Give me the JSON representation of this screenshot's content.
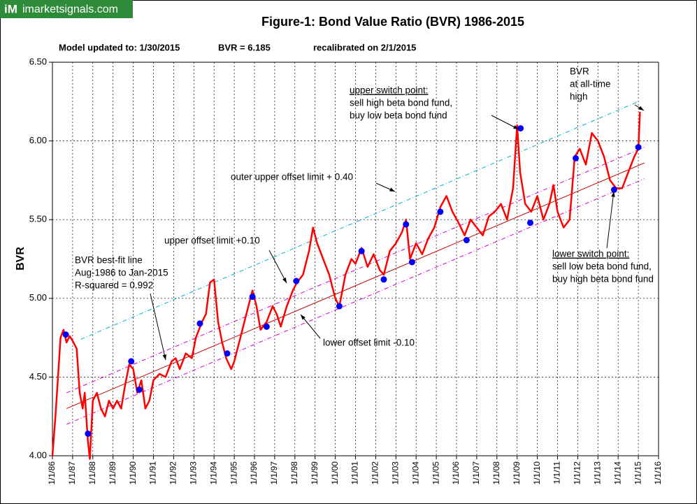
{
  "chart_data": {
    "type": "line",
    "brand": {
      "mark": "iM",
      "site": "imarketsignals.com"
    },
    "title": "Figure-1:  Bond Value Ratio (BVR)  1986-2015",
    "subtitle": [
      "Model updated to: 1/30/2015",
      "BVR = 6.185",
      "recalibrated on 2/1/2015"
    ],
    "ylabel": "BVR",
    "xlim": [
      1986,
      2016
    ],
    "xticks": [
      {
        "value": 1986,
        "label": "1/1/86"
      },
      {
        "value": 1987,
        "label": "1/1/87"
      },
      {
        "value": 1988,
        "label": "1/1/88"
      },
      {
        "value": 1989,
        "label": "1/1/89"
      },
      {
        "value": 1990,
        "label": "1/1/90"
      },
      {
        "value": 1991,
        "label": "1/1/91"
      },
      {
        "value": 1992,
        "label": "1/1/92"
      },
      {
        "value": 1993,
        "label": "1/1/93"
      },
      {
        "value": 1994,
        "label": "1/1/94"
      },
      {
        "value": 1995,
        "label": "1/1/95"
      },
      {
        "value": 1996,
        "label": "1/1/96"
      },
      {
        "value": 1997,
        "label": "1/1/97"
      },
      {
        "value": 1998,
        "label": "1/1/98"
      },
      {
        "value": 1999,
        "label": "1/1/99"
      },
      {
        "value": 2000,
        "label": "1/1/00"
      },
      {
        "value": 2001,
        "label": "1/1/01"
      },
      {
        "value": 2002,
        "label": "1/1/02"
      },
      {
        "value": 2003,
        "label": "1/1/03"
      },
      {
        "value": 2004,
        "label": "1/1/04"
      },
      {
        "value": 2005,
        "label": "1/1/05"
      },
      {
        "value": 2006,
        "label": "1/1/06"
      },
      {
        "value": 2007,
        "label": "1/1/07"
      },
      {
        "value": 2008,
        "label": "1/1/08"
      },
      {
        "value": 2009,
        "label": "1/1/09"
      },
      {
        "value": 2010,
        "label": "1/1/10"
      },
      {
        "value": 2011,
        "label": "1/1/11"
      },
      {
        "value": 2012,
        "label": "1/1/12"
      },
      {
        "value": 2013,
        "label": "1/1/13"
      },
      {
        "value": 2014,
        "label": "1/1/14"
      },
      {
        "value": 2015,
        "label": "1/1/15"
      },
      {
        "value": 2016,
        "label": "1/1/16"
      }
    ],
    "ylim": [
      4,
      6.5
    ],
    "yticks": [
      {
        "value": 4,
        "label": "4.00"
      },
      {
        "value": 4.5,
        "label": "4.50"
      },
      {
        "value": 5,
        "label": "5.00"
      },
      {
        "value": 5.5,
        "label": "5.50"
      },
      {
        "value": 6,
        "label": "6.00"
      },
      {
        "value": 6.5,
        "label": "6.50"
      }
    ],
    "grid": true,
    "series": [
      {
        "color": "#00b0d0",
        "dashed": true,
        "width": 1,
        "x": [
          1987.4,
          2015.0
        ],
        "values": [
          4.74,
          6.25
        ]
      },
      {
        "color": "#d000d0",
        "dashed": true,
        "width": 1,
        "x": [
          1986.7,
          2015.3
        ],
        "values": [
          4.4,
          5.96
        ]
      },
      {
        "color": "#d000d0",
        "dashed": true,
        "width": 1,
        "x": [
          1986.7,
          2015.3
        ],
        "values": [
          4.2,
          5.76
        ]
      },
      {
        "color": "#c00000",
        "width": 1,
        "x": [
          1986.7,
          2015.3
        ],
        "values": [
          4.3,
          5.86
        ]
      },
      {
        "color": "#ff0000",
        "width": 2.5,
        "x": [
          1986.0,
          1986.15,
          1986.3,
          1986.4,
          1986.55,
          1986.7,
          1986.85,
          1987.0,
          1987.2,
          1987.35,
          1987.5,
          1987.6,
          1987.75,
          1987.85,
          1988.0,
          1988.2,
          1988.4,
          1988.6,
          1988.8,
          1989.0,
          1989.2,
          1989.4,
          1989.6,
          1989.8,
          1990.0,
          1990.2,
          1990.4,
          1990.6,
          1990.8,
          1991.0,
          1991.3,
          1991.6,
          1991.9,
          1992.1,
          1992.3,
          1992.6,
          1992.9,
          1993.1,
          1993.4,
          1993.6,
          1993.8,
          1994.0,
          1994.2,
          1994.4,
          1994.6,
          1994.85,
          1995.0,
          1995.3,
          1995.6,
          1995.9,
          1996.1,
          1996.3,
          1996.6,
          1996.9,
          1997.1,
          1997.3,
          1997.6,
          1997.9,
          1998.1,
          1998.4,
          1998.7,
          1998.9,
          1999.1,
          1999.4,
          1999.7,
          2000.0,
          2000.2,
          2000.5,
          2000.8,
          2001.0,
          2001.3,
          2001.6,
          2001.9,
          2002.2,
          2002.4,
          2002.7,
          2003.0,
          2003.3,
          2003.5,
          2003.7,
          2004.0,
          2004.3,
          2004.6,
          2004.9,
          2005.2,
          2005.5,
          2005.8,
          2006.1,
          2006.4,
          2006.7,
          2007.0,
          2007.3,
          2007.6,
          2007.9,
          2008.2,
          2008.5,
          2008.8,
          2009.0,
          2009.15,
          2009.4,
          2009.7,
          2010.0,
          2010.3,
          2010.6,
          2010.8,
          2011.0,
          2011.3,
          2011.6,
          2011.85,
          2012.1,
          2012.4,
          2012.7,
          2013.0,
          2013.3,
          2013.6,
          2013.9,
          2014.2,
          2014.5,
          2014.8,
          2015.0,
          2015.08
        ],
        "values": [
          4.0,
          4.25,
          4.55,
          4.75,
          4.8,
          4.72,
          4.76,
          4.73,
          4.68,
          4.4,
          4.3,
          4.4,
          4.1,
          3.98,
          4.35,
          4.4,
          4.3,
          4.25,
          4.35,
          4.3,
          4.35,
          4.3,
          4.45,
          4.58,
          4.55,
          4.4,
          4.48,
          4.3,
          4.35,
          4.48,
          4.52,
          4.5,
          4.6,
          4.62,
          4.55,
          4.65,
          4.62,
          4.75,
          4.85,
          4.9,
          5.1,
          5.12,
          4.85,
          4.72,
          4.62,
          4.55,
          4.6,
          4.75,
          4.9,
          5.05,
          4.95,
          4.8,
          4.85,
          4.95,
          4.9,
          4.82,
          4.95,
          5.05,
          5.1,
          5.15,
          5.3,
          5.45,
          5.35,
          5.25,
          5.15,
          5.0,
          4.95,
          5.15,
          5.25,
          5.22,
          5.32,
          5.2,
          5.28,
          5.18,
          5.15,
          5.3,
          5.35,
          5.42,
          5.5,
          5.25,
          5.35,
          5.28,
          5.38,
          5.45,
          5.58,
          5.65,
          5.55,
          5.48,
          5.4,
          5.5,
          5.45,
          5.4,
          5.52,
          5.55,
          5.6,
          5.5,
          5.7,
          6.1,
          5.8,
          5.6,
          5.55,
          5.65,
          5.5,
          5.6,
          5.72,
          5.55,
          5.45,
          5.5,
          5.9,
          5.95,
          5.85,
          6.05,
          6.0,
          5.9,
          5.75,
          5.7,
          5.7,
          5.8,
          5.9,
          5.95,
          6.185
        ]
      },
      {
        "color": "#0000ff",
        "marker": "circle",
        "x": [
          1986.66,
          1987.76,
          1989.9,
          1990.3,
          1993.3,
          1994.65,
          1995.9,
          1996.6,
          1998.07,
          2000.2,
          2001.3,
          2002.4,
          2003.5,
          2003.8,
          2005.2,
          2006.5,
          2009.17,
          2009.65,
          2011.9,
          2013.8,
          2015.0
        ],
        "values": [
          4.77,
          4.14,
          4.6,
          4.42,
          4.84,
          4.65,
          5.01,
          4.82,
          5.11,
          4.95,
          5.3,
          5.12,
          5.47,
          5.23,
          5.55,
          5.37,
          6.08,
          5.48,
          5.89,
          5.69,
          5.96
        ]
      }
    ],
    "annotations": [
      {
        "lines": [
          "upper switch point:",
          "sell high beta bond fund,",
          "buy low beta bond fund"
        ],
        "underline_first": true
      },
      {
        "lines": [
          "BVR",
          "at all-time",
          "high"
        ]
      },
      {
        "lines": [
          "outer upper offset limit + 0.40"
        ]
      },
      {
        "lines": [
          "upper offset limit +0.10"
        ]
      },
      {
        "lines": [
          "BVR best-fit line",
          "Aug-1986 to Jan-2015",
          "R-squared = 0.992"
        ]
      },
      {
        "lines": [
          "lower offset limit  -0.10"
        ]
      },
      {
        "lines": [
          "lower switch point:",
          "sell low beta bond fund,",
          "buy high beta bond fund"
        ],
        "underline_first": true
      }
    ]
  }
}
